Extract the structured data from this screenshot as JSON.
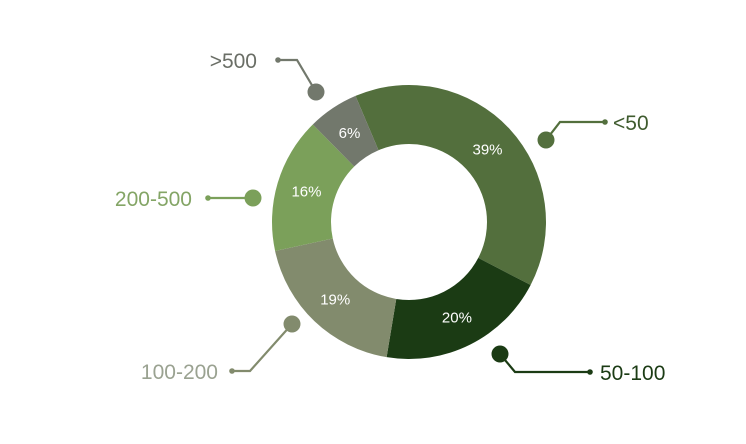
{
  "chart_data": {
    "type": "pie",
    "donut": true,
    "title": "",
    "series": [
      {
        "label": "<50",
        "value": 39,
        "value_label": "39%",
        "color": "#536f3d"
      },
      {
        "label": "50-100",
        "value": 20,
        "value_label": "20%",
        "color": "#1b3b14"
      },
      {
        "label": "100-200",
        "value": 19,
        "value_label": "19%",
        "color": "#828b6d"
      },
      {
        "label": "200-500",
        "value": 16,
        "value_label": "16%",
        "color": "#7ba05a"
      },
      {
        "label": ">500",
        "value": 6,
        "value_label": "6%",
        "color": "#72786c"
      }
    ],
    "legend": "none",
    "labels": "outside-with-leader-lines"
  }
}
